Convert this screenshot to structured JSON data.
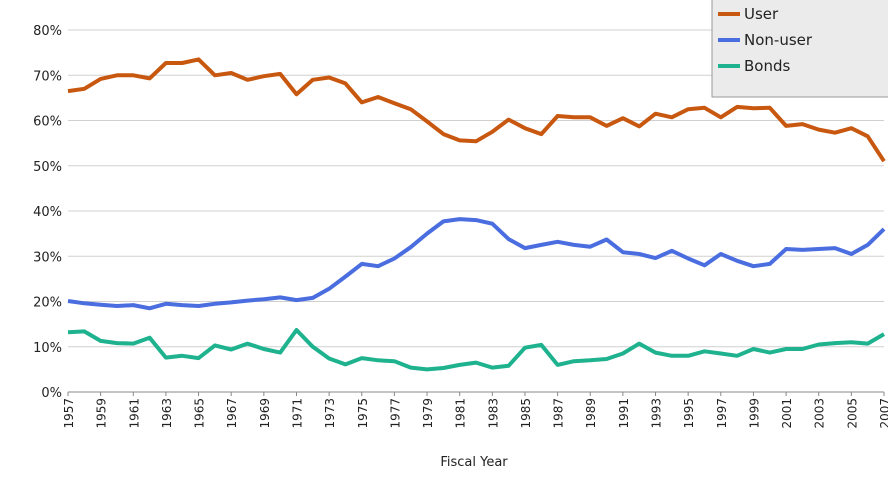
{
  "chart_data": {
    "type": "line",
    "x_label": "Fiscal Year",
    "x": [
      1957,
      1958,
      1959,
      1960,
      1961,
      1962,
      1963,
      1964,
      1965,
      1966,
      1967,
      1968,
      1969,
      1970,
      1971,
      1972,
      1973,
      1974,
      1975,
      1976,
      1977,
      1978,
      1979,
      1980,
      1981,
      1982,
      1983,
      1984,
      1985,
      1986,
      1987,
      1988,
      1989,
      1990,
      1991,
      1992,
      1993,
      1994,
      1995,
      1996,
      1997,
      1998,
      1999,
      2000,
      2001,
      2002,
      2003,
      2004,
      2005,
      2006,
      2007
    ],
    "xlim": [
      1957,
      2007
    ],
    "xticks": [
      1957,
      1959,
      1961,
      1963,
      1965,
      1967,
      1969,
      1971,
      1973,
      1975,
      1977,
      1979,
      1981,
      1983,
      1985,
      1987,
      1989,
      1991,
      1993,
      1995,
      1997,
      1999,
      2001,
      2003,
      2005,
      2007
    ],
    "ylim": [
      0,
      80
    ],
    "yticks": [
      {
        "value": 0,
        "label": "0%"
      },
      {
        "value": 10,
        "label": "10%"
      },
      {
        "value": 20,
        "label": "20%"
      },
      {
        "value": 30,
        "label": "30%"
      },
      {
        "value": 40,
        "label": "40%"
      },
      {
        "value": 50,
        "label": "50%"
      },
      {
        "value": 60,
        "label": "60%"
      },
      {
        "value": 70,
        "label": "70%"
      },
      {
        "value": 80,
        "label": "80%"
      }
    ],
    "grid": true,
    "legend": "top-right",
    "series": [
      {
        "name": "User",
        "color": "#c8570f",
        "values": [
          66.5,
          67,
          69.2,
          70,
          70,
          69.3,
          72.7,
          72.7,
          73.5,
          70,
          70.5,
          69,
          69.8,
          70.3,
          65.8,
          69,
          69.5,
          68.2,
          64,
          65.2,
          63.8,
          62.5,
          59.8,
          57,
          55.6,
          55.4,
          57.5,
          60.2,
          58.3,
          57,
          61,
          60.7,
          60.7,
          58.8,
          60.5,
          58.7,
          61.5,
          60.7,
          62.5,
          62.8,
          60.7,
          63,
          62.7,
          62.8,
          58.8,
          59.2,
          58,
          57.3,
          58.3,
          56.5,
          51
        ]
      },
      {
        "name": "Non-user",
        "color": "#4a6de0",
        "values": [
          20.1,
          19.6,
          19.3,
          19,
          19.2,
          18.5,
          19.5,
          19.2,
          19,
          19.5,
          19.8,
          20.2,
          20.5,
          20.9,
          20.3,
          20.8,
          22.8,
          25.5,
          28.3,
          27.8,
          29.5,
          32,
          35,
          37.7,
          38.2,
          38,
          37.2,
          33.8,
          31.8,
          32.5,
          33.2,
          32.5,
          32.1,
          33.7,
          30.9,
          30.5,
          29.6,
          31.2,
          29.5,
          28,
          30.5,
          29,
          27.8,
          28.3,
          31.6,
          31.4,
          31.6,
          31.8,
          30.5,
          32.5,
          36
        ]
      },
      {
        "name": "Bonds",
        "color": "#1fb28e",
        "values": [
          13.2,
          13.4,
          11.3,
          10.8,
          10.7,
          12,
          7.6,
          8,
          7.5,
          10.3,
          9.4,
          10.7,
          9.5,
          8.7,
          13.7,
          10,
          7.4,
          6.1,
          7.5,
          7,
          6.8,
          5.4,
          5,
          5.3,
          6,
          6.5,
          5.4,
          5.8,
          9.8,
          10.4,
          6,
          6.8,
          7,
          7.3,
          8.5,
          10.7,
          8.7,
          8,
          8,
          9,
          8.5,
          8,
          9.5,
          8.7,
          9.5,
          9.5,
          10.5,
          10.8,
          11,
          10.7,
          12.8
        ]
      }
    ]
  }
}
